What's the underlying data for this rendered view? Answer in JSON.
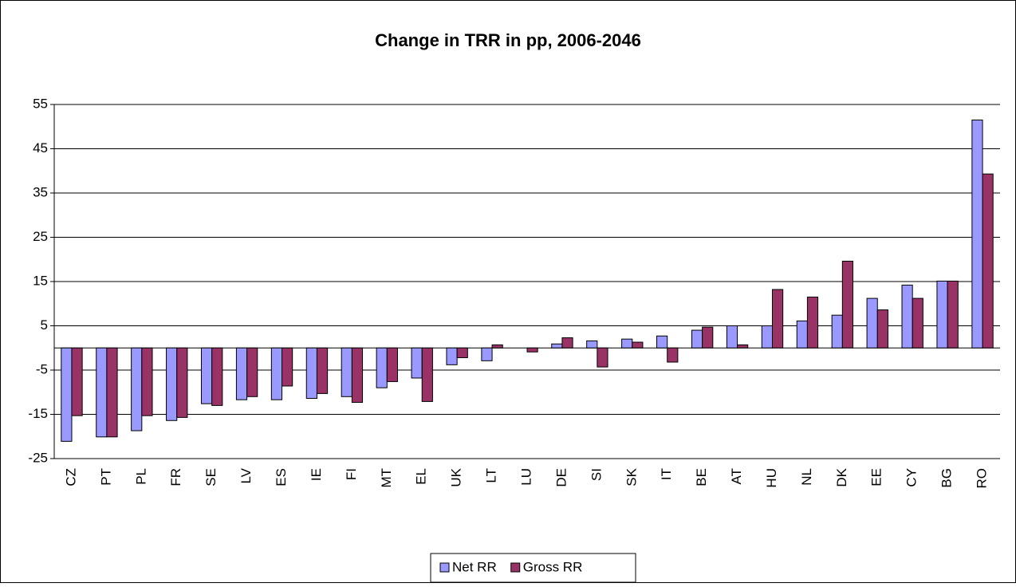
{
  "chart_data": {
    "type": "bar",
    "title": "Change in TRR in pp, 2006-2046",
    "categories": [
      "CZ",
      "PT",
      "PL",
      "FR",
      "SE",
      "LV",
      "ES",
      "IE",
      "FI",
      "MT",
      "EL",
      "UK",
      "LT",
      "LU",
      "DE",
      "SI",
      "SK",
      "IT",
      "BE",
      "AT",
      "HU",
      "NL",
      "DK",
      "EE",
      "CY",
      "BG",
      "RO"
    ],
    "series": [
      {
        "name": "Net RR",
        "color": "#9999ff",
        "values": [
          -21.1,
          -20.1,
          -18.7,
          -16.4,
          -12.6,
          -11.7,
          -11.7,
          -11.4,
          -11.0,
          -9.0,
          -6.8,
          -3.8,
          -2.9,
          0,
          0.9,
          1.6,
          2.0,
          2.7,
          4.0,
          5.0,
          5.0,
          6.1,
          7.4,
          11.2,
          14.2,
          15.1,
          51.5
        ]
      },
      {
        "name": "Gross RR",
        "color": "#993366",
        "values": [
          -15.3,
          -20.1,
          -15.3,
          -15.7,
          -13.0,
          -11.0,
          -8.6,
          -10.3,
          -12.3,
          -7.6,
          -12.1,
          -2.2,
          0.7,
          -0.9,
          2.3,
          -4.3,
          1.3,
          -3.2,
          4.7,
          0.7,
          13.2,
          11.5,
          19.6,
          8.6,
          11.2,
          15.1,
          39.3
        ]
      }
    ],
    "ylim": [
      -25,
      55
    ],
    "yticks": [
      -25,
      -15,
      -5,
      5,
      15,
      25,
      35,
      45,
      55
    ],
    "grid": true,
    "legend": "bottom"
  }
}
